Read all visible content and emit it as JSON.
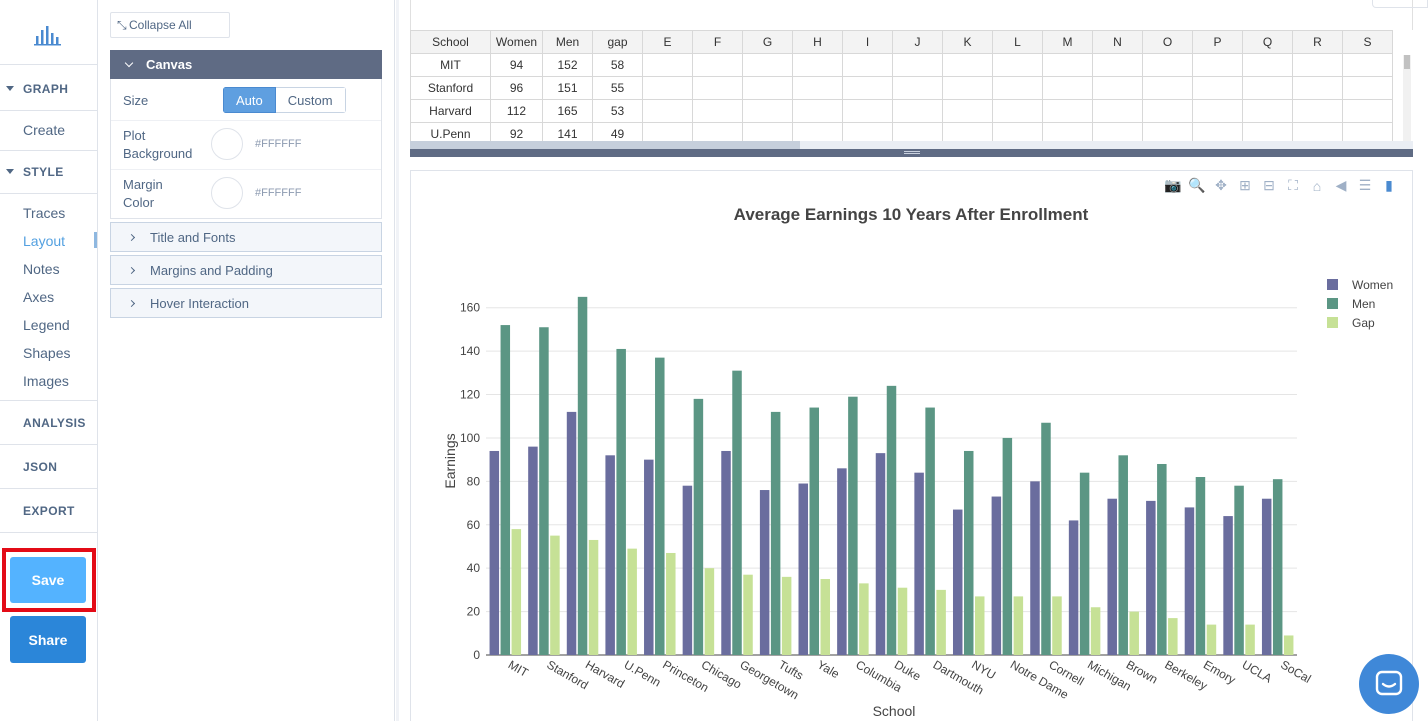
{
  "nav": {
    "groups": [
      {
        "label": "GRAPH",
        "items": [
          {
            "label": "Create"
          }
        ]
      },
      {
        "label": "STYLE",
        "items": [
          {
            "label": "Traces"
          },
          {
            "label": "Layout"
          },
          {
            "label": "Notes"
          },
          {
            "label": "Axes"
          },
          {
            "label": "Legend"
          },
          {
            "label": "Shapes"
          },
          {
            "label": "Images"
          }
        ]
      },
      {
        "label": "ANALYSIS"
      },
      {
        "label": "JSON"
      },
      {
        "label": "EXPORT"
      }
    ],
    "active_item": "Layout",
    "save_label": "Save",
    "share_label": "Share",
    "accent": "#53a0e0"
  },
  "panel": {
    "collapse_all_label": "Collapse All",
    "canvas": {
      "title": "Canvas",
      "size_label": "Size",
      "size_options": [
        "Auto",
        "Custom"
      ],
      "size_selected": "Auto",
      "plot_bg_label": "Plot Background",
      "plot_bg_value": "#FFFFFF",
      "margin_color_label": "Margin Color",
      "margin_color_value": "#FFFFFF"
    },
    "sections": [
      "Title and Fonts",
      "Margins and Padding",
      "Hover Interaction"
    ]
  },
  "grid": {
    "headers": [
      "School",
      "Women",
      "Men",
      "gap",
      "E",
      "F",
      "G",
      "H",
      "I",
      "J",
      "K",
      "L",
      "M",
      "N",
      "O",
      "P",
      "Q",
      "R",
      "S"
    ],
    "rows": [
      [
        "MIT",
        "94",
        "152",
        "58"
      ],
      [
        "Stanford",
        "96",
        "151",
        "55"
      ],
      [
        "Harvard",
        "112",
        "165",
        "53"
      ],
      [
        "U.Penn",
        "92",
        "141",
        "49"
      ]
    ]
  },
  "modebar_icons": [
    "camera-icon",
    "zoom-icon",
    "pan-icon",
    "zoom-in-icon",
    "zoom-out-icon",
    "autoscale-icon",
    "reset-axes-icon",
    "hover-closest-icon",
    "hover-compare-icon",
    "plotly-logo-icon"
  ],
  "chart_data": {
    "type": "bar",
    "title": "Average Earnings 10 Years After Enrollment",
    "xlabel": "School",
    "ylabel": "Earnings",
    "ylim": [
      0,
      170
    ],
    "yticks": [
      0,
      20,
      40,
      60,
      80,
      100,
      120,
      140,
      160
    ],
    "grid": true,
    "legend_position": "top-right",
    "categories": [
      "MIT",
      "Stanford",
      "Harvard",
      "U.Penn",
      "Princeton",
      "Chicago",
      "Georgetown",
      "Tufts",
      "Yale",
      "Columbia",
      "Duke",
      "Dartmouth",
      "NYU",
      "Notre Dame",
      "Cornell",
      "Michigan",
      "Brown",
      "Berkeley",
      "Emory",
      "UCLA",
      "SoCal"
    ],
    "series": [
      {
        "name": "Women",
        "color": "#6a6d9e",
        "values": [
          94,
          96,
          112,
          92,
          90,
          78,
          94,
          76,
          79,
          86,
          93,
          84,
          67,
          73,
          80,
          62,
          72,
          71,
          68,
          64,
          72
        ]
      },
      {
        "name": "Men",
        "color": "#5b9684",
        "values": [
          152,
          151,
          165,
          141,
          137,
          118,
          131,
          112,
          114,
          119,
          124,
          114,
          94,
          100,
          107,
          84,
          92,
          88,
          82,
          78,
          81
        ]
      },
      {
        "name": "Gap",
        "color": "#c6e196",
        "values": [
          58,
          55,
          53,
          49,
          47,
          40,
          37,
          36,
          35,
          33,
          31,
          30,
          27,
          27,
          27,
          22,
          20,
          17,
          14,
          14,
          9
        ]
      }
    ]
  }
}
